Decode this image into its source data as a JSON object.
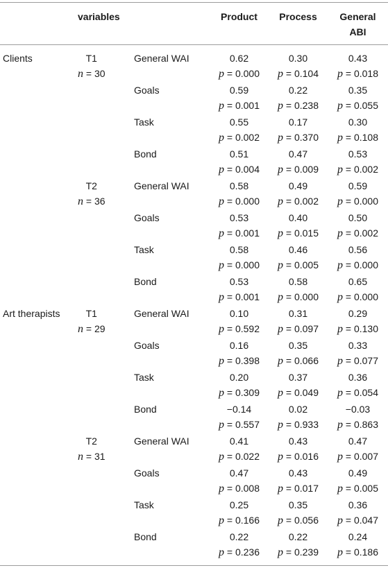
{
  "header": {
    "variables": "variables",
    "product": "Product",
    "process": "Process",
    "general_abi_line1": "General",
    "general_abi_line2": "ABI"
  },
  "p_label": "p",
  "n_label": "n",
  "groups": [
    {
      "name": "Clients",
      "times": [
        {
          "time": "T1",
          "n": "= 30",
          "rows": [
            {
              "variable": "General WAI",
              "product": [
                "0.62",
                "= 0.000"
              ],
              "process": [
                "0.30",
                "= 0.104"
              ],
              "general": [
                "0.43",
                "= 0.018"
              ]
            },
            {
              "variable": "Goals",
              "product": [
                "0.59",
                "= 0.001"
              ],
              "process": [
                "0.22",
                "= 0.238"
              ],
              "general": [
                "0.35",
                "= 0.055"
              ]
            },
            {
              "variable": "Task",
              "product": [
                "0.55",
                "= 0.002"
              ],
              "process": [
                "0.17",
                "= 0.370"
              ],
              "general": [
                "0.30",
                "= 0.108"
              ]
            },
            {
              "variable": "Bond",
              "product": [
                "0.51",
                "= 0.004"
              ],
              "process": [
                "0.47",
                "= 0.009"
              ],
              "general": [
                "0.53",
                "= 0.002"
              ]
            }
          ]
        },
        {
          "time": "T2",
          "n": "= 36",
          "rows": [
            {
              "variable": "General WAI",
              "product": [
                "0.58",
                "= 0.000"
              ],
              "process": [
                "0.49",
                "= 0.002"
              ],
              "general": [
                "0.59",
                "= 0.000"
              ]
            },
            {
              "variable": "Goals",
              "product": [
                "0.53",
                "= 0.001"
              ],
              "process": [
                "0.40",
                "= 0.015"
              ],
              "general": [
                "0.50",
                "= 0.002"
              ]
            },
            {
              "variable": "Task",
              "product": [
                "0.58",
                "= 0.000"
              ],
              "process": [
                "0.46",
                "= 0.005"
              ],
              "general": [
                "0.56",
                "= 0.000"
              ]
            },
            {
              "variable": "Bond",
              "product": [
                "0.53",
                "= 0.001"
              ],
              "process": [
                "0.58",
                "= 0.000"
              ],
              "general": [
                "0.65",
                "= 0.000"
              ]
            }
          ]
        }
      ]
    },
    {
      "name": "Art therapists",
      "times": [
        {
          "time": "T1",
          "n": "= 29",
          "rows": [
            {
              "variable": "General WAI",
              "product": [
                "0.10",
                "= 0.592"
              ],
              "process": [
                "0.31",
                "= 0.097"
              ],
              "general": [
                "0.29",
                "= 0.130"
              ]
            },
            {
              "variable": "Goals",
              "product": [
                "0.16",
                "= 0.398"
              ],
              "process": [
                "0.35",
                "= 0.066"
              ],
              "general": [
                "0.33",
                "= 0.077"
              ]
            },
            {
              "variable": "Task",
              "product": [
                "0.20",
                "= 0.309"
              ],
              "process": [
                "0.37",
                "= 0.049"
              ],
              "general": [
                "0.36",
                "= 0.054"
              ]
            },
            {
              "variable": "Bond",
              "product": [
                "−0.14",
                "= 0.557"
              ],
              "process": [
                "0.02",
                "= 0.933"
              ],
              "general": [
                "−0.03",
                "= 0.863"
              ]
            }
          ]
        },
        {
          "time": "T2",
          "n": "= 31",
          "rows": [
            {
              "variable": "General WAI",
              "product": [
                "0.41",
                "= 0.022"
              ],
              "process": [
                "0.43",
                "= 0.016"
              ],
              "general": [
                "0.47",
                "= 0.007"
              ]
            },
            {
              "variable": "Goals",
              "product": [
                "0.47",
                "= 0.008"
              ],
              "process": [
                "0.43",
                "= 0.017"
              ],
              "general": [
                "0.49",
                "= 0.005"
              ]
            },
            {
              "variable": "Task",
              "product": [
                "0.25",
                "= 0.166"
              ],
              "process": [
                "0.35",
                "= 0.056"
              ],
              "general": [
                "0.36",
                "= 0.047"
              ]
            },
            {
              "variable": "Bond",
              "product": [
                "0.22",
                "= 0.236"
              ],
              "process": [
                "0.22",
                "= 0.239"
              ],
              "general": [
                "0.24",
                "= 0.186"
              ]
            }
          ]
        }
      ]
    }
  ]
}
